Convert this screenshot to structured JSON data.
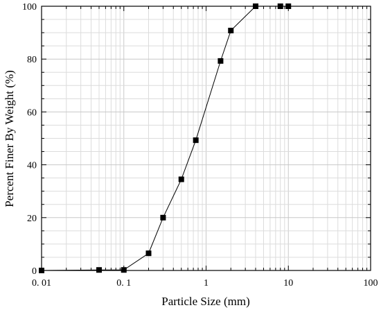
{
  "chart_data": {
    "type": "scatter",
    "title": "",
    "xlabel": "Particle Size (mm)",
    "ylabel": "Percent Finer By Weight (%)",
    "xscale": "log",
    "xlim": [
      0.01,
      100
    ],
    "ylim": [
      0,
      100
    ],
    "x_ticks": [
      0.01,
      0.1,
      1,
      10,
      100
    ],
    "x_tick_labels": [
      "0. 01",
      "0. 1",
      "1",
      "10",
      "100"
    ],
    "y_ticks": [
      0,
      20,
      40,
      60,
      80,
      100
    ],
    "y_tick_labels": [
      "0",
      "20",
      "40",
      "60",
      "80",
      "100"
    ],
    "grid": true,
    "legend": "none",
    "line_color": "#000000",
    "marker": "square",
    "series": [
      {
        "x": [
          0.01,
          0.05,
          0.1,
          0.2,
          0.3,
          0.5,
          0.75,
          1.5,
          2,
          4,
          8,
          10
        ],
        "y": [
          0,
          0.2,
          0.2,
          6.5,
          20,
          34.5,
          49.3,
          79.3,
          90.8,
          100,
          100,
          100
        ]
      }
    ]
  }
}
